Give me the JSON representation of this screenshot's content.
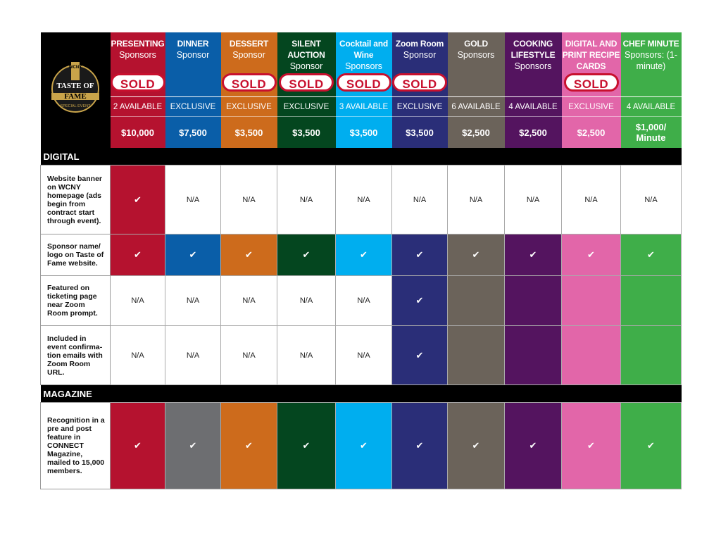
{
  "logo": {
    "brand": "WCNY",
    "title_line1": "TASTE OF",
    "title_line2": "FAME",
    "tagline": "SPECIAL EVENT"
  },
  "columns": [
    {
      "title": "PRESENTING",
      "subtitle": "Sponsors",
      "sold": true,
      "availability": "2 AVAILABLE",
      "price": "$10,000",
      "color": "#b5122f"
    },
    {
      "title": "DINNER",
      "subtitle": "Sponsor",
      "sold": false,
      "availability": "EXCLUSIVE",
      "price": "$7,500",
      "color": "#0a5ea8"
    },
    {
      "title": "DESSERT",
      "subtitle": "Sponsor",
      "sold": true,
      "availability": "EXCLUSIVE",
      "price": "$3,500",
      "color": "#cd6b1c"
    },
    {
      "title": "SILENT AUCTION",
      "subtitle": "Sponsor",
      "sold": true,
      "availability": "EXCLUSIVE",
      "price": "$3,500",
      "color": "#04461f"
    },
    {
      "title": "Cocktail and Wine",
      "subtitle": "Sponsors",
      "sold": true,
      "availability": "3 AVAILABLE",
      "price": "$3,500",
      "color": "#00aeef"
    },
    {
      "title": "Zoom Room",
      "subtitle": "Sponsor",
      "sold": true,
      "availability": "EXCLUSIVE",
      "price": "$3,500",
      "color": "#2a2e78"
    },
    {
      "title": "GOLD",
      "subtitle": "Sponsors",
      "sold": false,
      "availability": "6 AVAILABLE",
      "price": "$2,500",
      "color": "#6b635a"
    },
    {
      "title": "COOKING LIFESTYLE",
      "subtitle": "Sponsors",
      "sold": false,
      "availability": "4 AVAILABLE",
      "price": "$2,500",
      "color": "#54145f"
    },
    {
      "title": "DIGITAL AND PRINT RECIPE CARDS",
      "subtitle": "",
      "sold": true,
      "availability": "EXCLUSIVE",
      "price": "$2,500",
      "color": "#e266a9"
    },
    {
      "title": "CHEF MINUTE",
      "subtitle": "Sponsors: (1-minute)",
      "sold": false,
      "availability": "4 AVAILABLE",
      "price": "$1,000/ Minute",
      "color": "#3fae49"
    }
  ],
  "sold_label": "SOLD",
  "check": "✔",
  "na": "N/A",
  "sections": [
    {
      "title": "DIGITAL",
      "rows": [
        {
          "label": "Website banner on WCNY homepage (ads begin from contract start through event).",
          "height": 97,
          "cells": [
            "check",
            "na",
            "na",
            "na",
            "na",
            "na",
            "na",
            "na",
            "na",
            "na"
          ]
        },
        {
          "label": "Sponsor name/ logo on Taste of Fame website.",
          "height": 58,
          "cells": [
            "check",
            "check",
            "check",
            "check",
            "check",
            "check",
            "check",
            "check",
            "check",
            "check"
          ]
        },
        {
          "label": "Featured on ticketing page near Zoom Room prompt.",
          "height": 70,
          "cells": [
            "na",
            "na",
            "na",
            "na",
            "na",
            "check",
            "blank",
            "blank",
            "blank",
            "blank"
          ]
        },
        {
          "label": "Included in event confirma-tion emails with Zoom Room URL.",
          "height": 83,
          "cells": [
            "na",
            "na",
            "na",
            "na",
            "na",
            "check",
            "blank",
            "blank",
            "blank",
            "blank"
          ]
        }
      ]
    },
    {
      "title": "MAGAZINE",
      "rows": [
        {
          "label": "Recognition in a pre and post feature in CONNECT Magazine, mailed to 15,000 members.",
          "height": 122,
          "cells": [
            "check",
            "gray",
            "check",
            "check",
            "check",
            "check",
            "check",
            "check",
            "check",
            "check"
          ]
        }
      ]
    }
  ]
}
